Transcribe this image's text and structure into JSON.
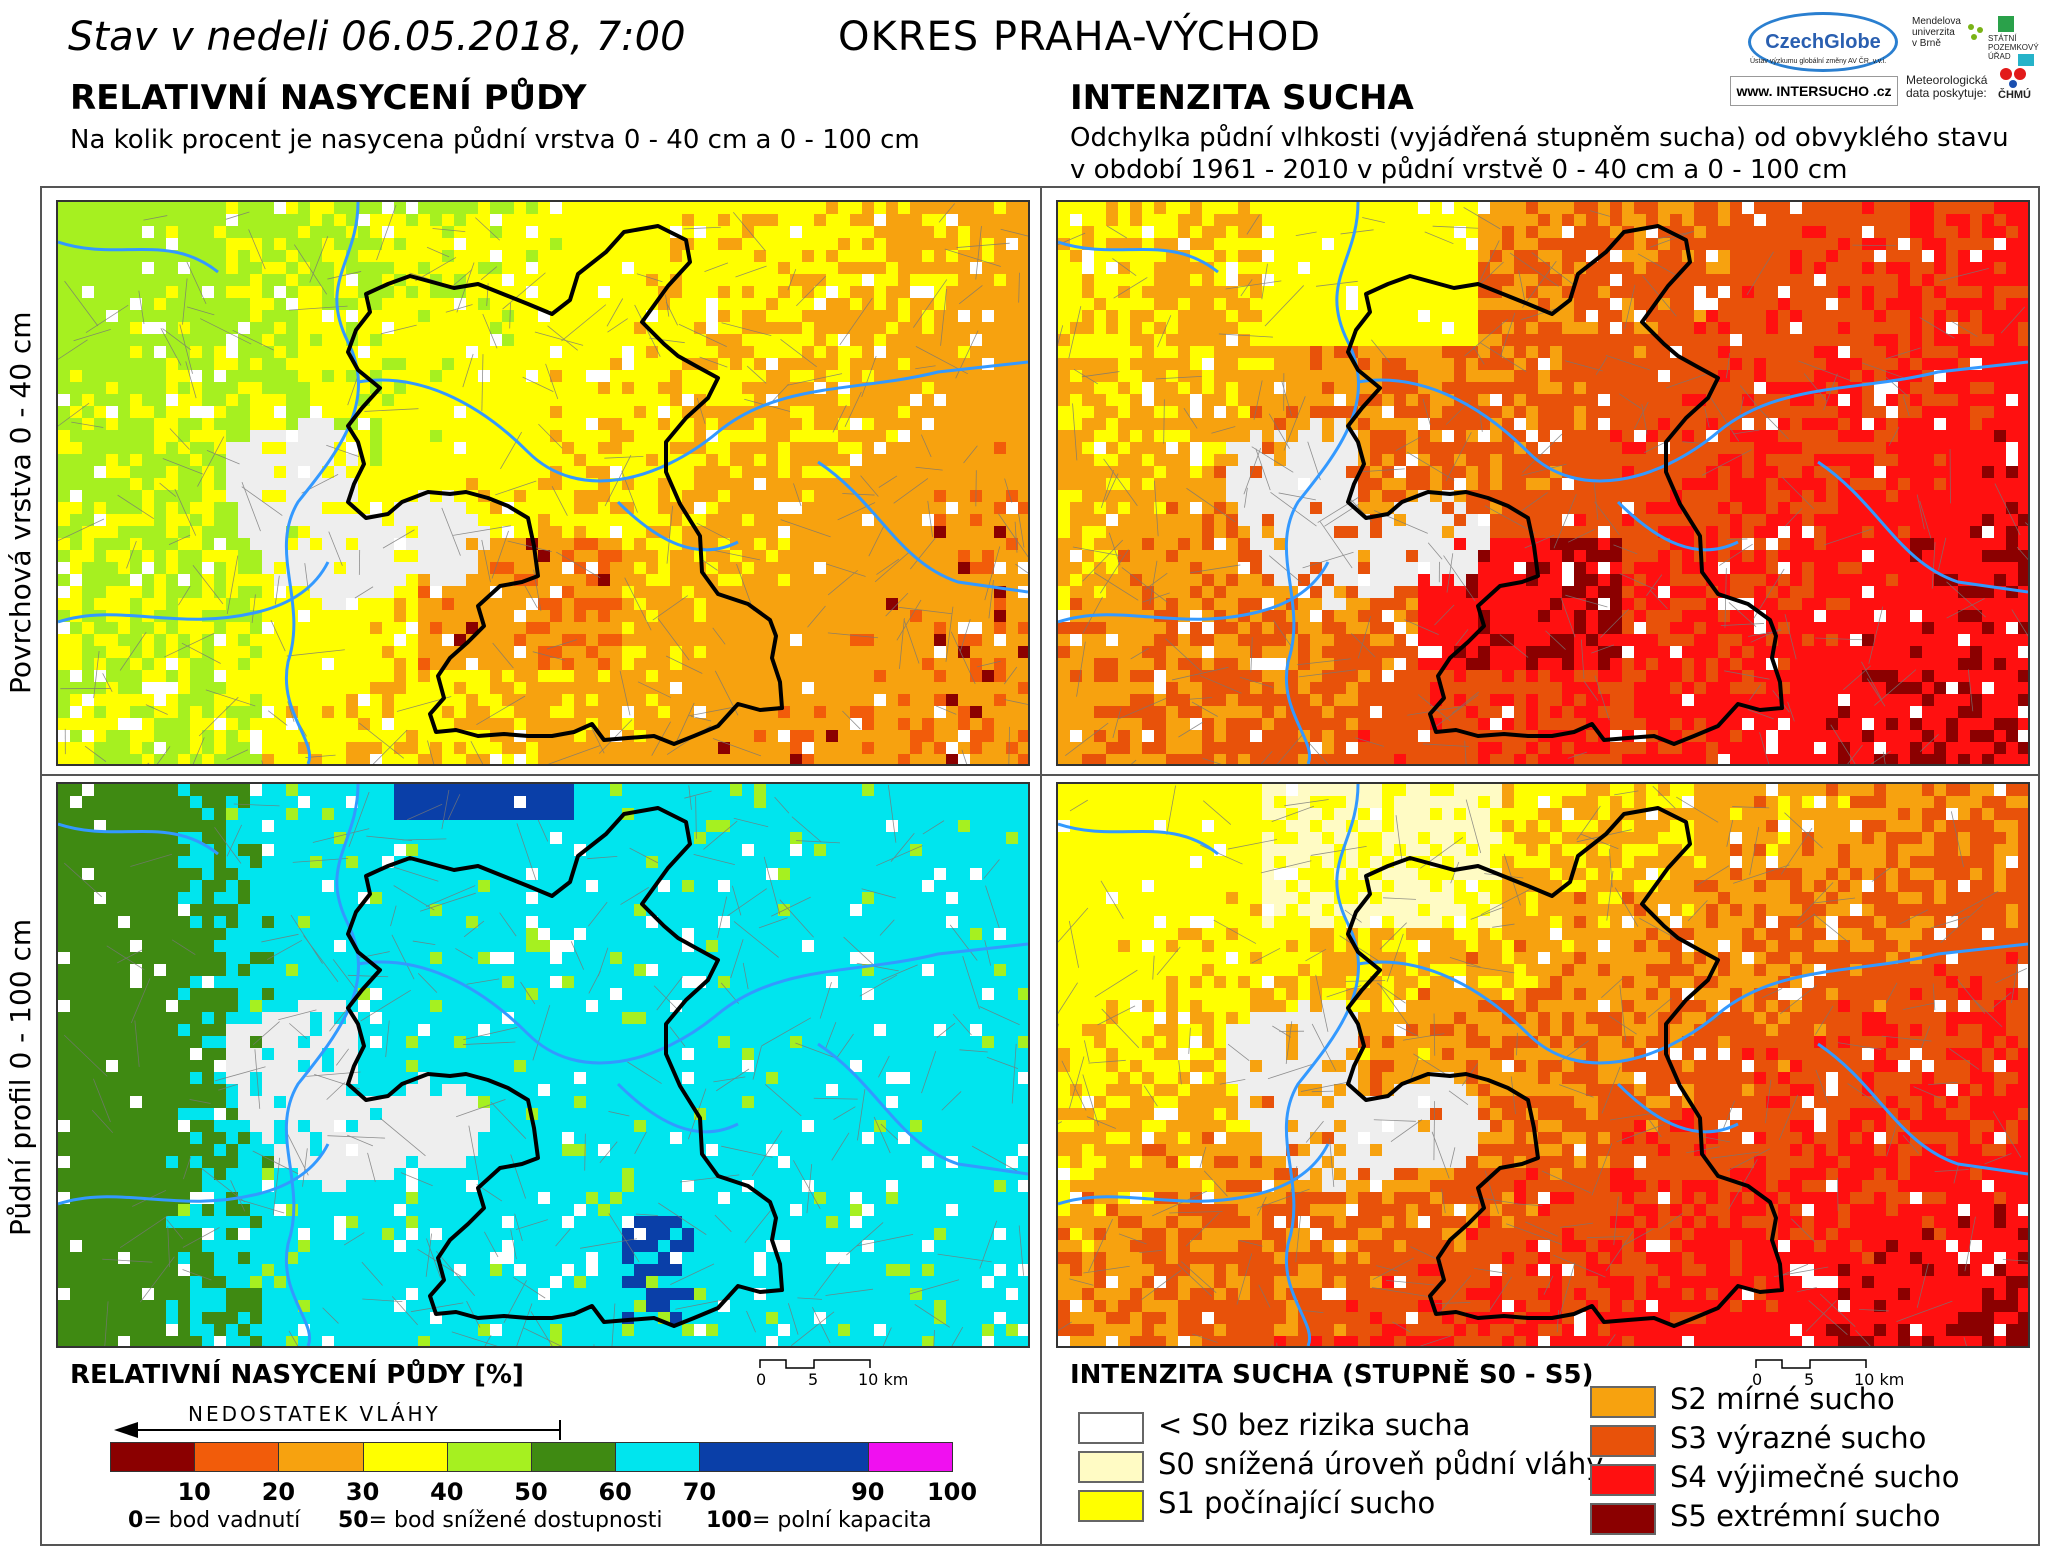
{
  "header": {
    "date_text": "Stav v nedeli 06.05.2018, 7:00",
    "district": "OKRES PRAHA-VÝCHOD"
  },
  "left": {
    "title": "RELATIVNÍ NASYCENÍ PŮDY",
    "subtitle": "Na kolik procent je nasycena půdní vrstva 0 - 40 cm a 0 - 100 cm"
  },
  "right": {
    "title": "INTENZITA SUCHA",
    "subtitle_line1": "Odchylka půdní vlhkosti (vyjádřená stupněm sucha) od obvyklého stavu",
    "subtitle_line2": "v období 1961 - 2010 v půdní vrstvě 0 - 40 cm a 0 - 100 cm"
  },
  "rows": {
    "top_label": "Povrchová vrstva 0 - 40 cm",
    "bottom_label": "Půdní profil 0 - 100 cm"
  },
  "logos": {
    "czechglobe": "CzechGlobe",
    "czechglobe_sub": "Ústav výzkumu globální změny AV ČR, v.v.i.",
    "mendelu": [
      "Mendelova",
      "univerzita",
      "v Brně"
    ],
    "spu": [
      "STÁTNÍ",
      "POZEMKOVÝ",
      "ÚŘAD"
    ],
    "intersucho": "www. INTERSUCHO .cz",
    "meteo": [
      "Meteorologická",
      "data poskytuje:"
    ],
    "chmu": "ČHMÚ"
  },
  "legend_left": {
    "title": "RELATIVNÍ NASYCENÍ PŮDY [%]",
    "arrow_label": "NEDOSTATEK VLÁHY",
    "bins": [
      {
        "upper": "10",
        "color": "#8b0000"
      },
      {
        "upper": "20",
        "color": "#f25c0a"
      },
      {
        "upper": "30",
        "color": "#f7a20f"
      },
      {
        "upper": "40",
        "color": "#ffff00"
      },
      {
        "upper": "50",
        "color": "#a6f020"
      },
      {
        "upper": "60",
        "color": "#3f8a12"
      },
      {
        "upper": "70",
        "color": "#00e5ee"
      },
      {
        "upper": "90",
        "color": "#0a3fa8"
      },
      {
        "upper": "100",
        "color": "#f010f0"
      }
    ],
    "notes": [
      {
        "value": "0",
        "text": "= bod vadnutí"
      },
      {
        "value": "50",
        "text": "= bod snížené dostupnosti"
      },
      {
        "value": "100",
        "text": "= polní kapacita"
      }
    ]
  },
  "legend_right": {
    "title": "INTENZITA SUCHA (STUPNĚ S0 - S5)",
    "classes": [
      {
        "label": "< S0 bez rizika sucha",
        "color": "#ffffff"
      },
      {
        "label": "S0 snížená úroveň půdní vláhy",
        "color": "#fffbc4"
      },
      {
        "label": "S1 počínající sucho",
        "color": "#ffff00"
      },
      {
        "label": "S2 mírné sucho",
        "color": "#f7a20f"
      },
      {
        "label": "S3 výrazné sucho",
        "color": "#e8520a"
      },
      {
        "label": "S4 výjimečné sucho",
        "color": "#ff1010"
      },
      {
        "label": "S5 extrémní sucho",
        "color": "#8b0000"
      }
    ]
  },
  "scale_bar": {
    "ticks": [
      "0",
      "5",
      "10 km"
    ]
  },
  "map_colors": {
    "river": "#3399ff",
    "district_border": "#000000",
    "municipal_border": "#777777",
    "city": "#eeeeee"
  }
}
